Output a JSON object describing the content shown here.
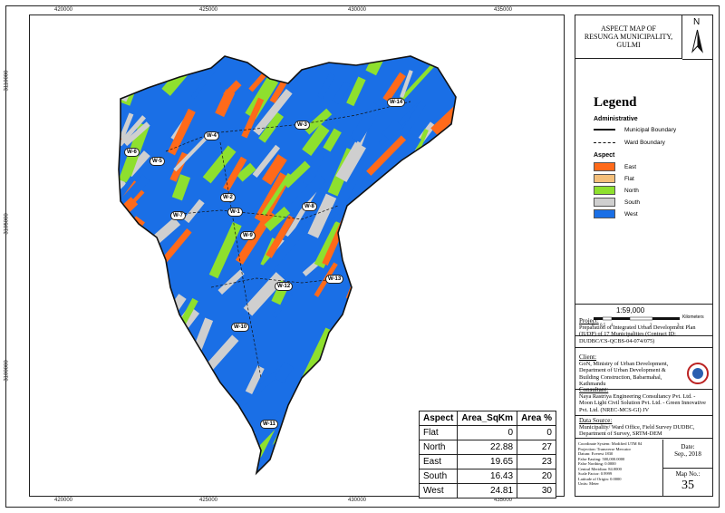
{
  "title": {
    "line1": "ASPECT MAP OF",
    "line2": "RESUNGA MUNICIPALITY,",
    "line3": "GULMI"
  },
  "north_label": "N",
  "axis": {
    "x_top": [
      "420000",
      "425000",
      "430000",
      "435000"
    ],
    "x_bottom": [
      "420000",
      "425000",
      "430000",
      "435000"
    ],
    "y_left": [
      "3110000",
      "3105000",
      "3100000"
    ],
    "y_right": [
      "3110000",
      "3105000",
      "3100000"
    ]
  },
  "legend": {
    "title": "Legend",
    "admin_heading": "Administrative",
    "municipal_boundary": "Municipal Boundary",
    "ward_boundary": "Ward Boundary",
    "aspect_heading": "Aspect",
    "items": [
      {
        "label": "East",
        "color": "#ff6a1a"
      },
      {
        "label": "Flat",
        "color": "#f4bf7a"
      },
      {
        "label": "North",
        "color": "#8ee02e"
      },
      {
        "label": "South",
        "color": "#cfcfcf"
      },
      {
        "label": "West",
        "color": "#1a6fe6"
      }
    ]
  },
  "scale": {
    "ratio": "1:59,000",
    "unit": "Kilometers",
    "ticks": [
      "0",
      "0.5",
      "1",
      "2",
      "3"
    ]
  },
  "project": {
    "heading": "Project:",
    "text": "Preparation of Integrated Urban Development Plan (IUDP) of 17 Municipalities (Contract ID: DUDBC/CS-QCBS-04-074/075)"
  },
  "client": {
    "heading": "Client:",
    "text": "GoN, Ministry of Urban Development, Department of Urban Development & Building Construction, Babarmahal, Kathmandu"
  },
  "consultant": {
    "heading": "Consultant:",
    "text": "Naya Rastriya Engineering Consultancy Pvt. Ltd. - Moon Light Civil Solution Pvt. Ltd. - Green Innovative Pvt. Ltd. (NREC-MCS-GI) JV"
  },
  "data_source": {
    "heading": "Data Source:",
    "text": "Municipality/ Ward Office, Field Survey DUDBC, Department of Survey, SRTM-DEM"
  },
  "projection": [
    "Coordinate System: Modified UTM 84",
    "Projection: Transverse Mercator",
    "Datum: Everest 1830",
    "False Easting: 500,000.0000",
    "False Northing: 0.0000",
    "Central Meridian: 84.0000",
    "Scale Factor: 0.9999",
    "Latitude of Origin: 0.0000",
    "Units: Meter"
  ],
  "date": {
    "label": "Date:",
    "value": "Sep., 2018"
  },
  "map_no": {
    "label": "Map No.:",
    "value": "35"
  },
  "wards": [
    "W-1",
    "W-2",
    "W-3",
    "W-4",
    "W-5",
    "W-6",
    "W-7",
    "W-8",
    "W-9",
    "W-10",
    "W-11",
    "W-12",
    "W-13",
    "W-14"
  ],
  "area_table": {
    "headers": [
      "Aspect",
      "Area_SqKm",
      "Area %"
    ],
    "rows": [
      [
        "Flat",
        "0",
        "0"
      ],
      [
        "North",
        "22.88",
        "27"
      ],
      [
        "East",
        "19.65",
        "23"
      ],
      [
        "South",
        "16.43",
        "20"
      ],
      [
        "West",
        "24.81",
        "30"
      ]
    ]
  }
}
